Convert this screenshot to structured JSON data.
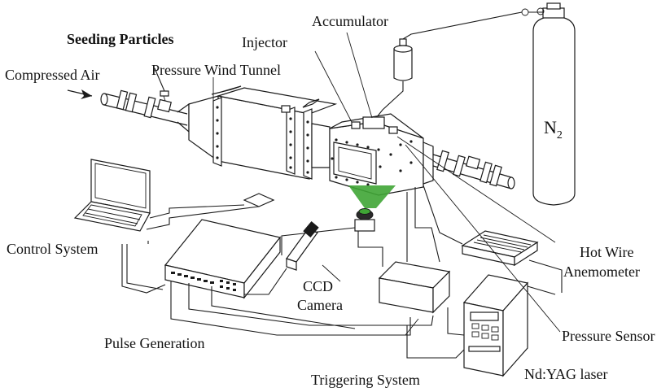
{
  "labels": {
    "seeding_particles": "Seeding Particles",
    "compressed_air": "Compressed Air",
    "pressure_wind_tunnel": "Pressure Wind Tunnel",
    "injector": "Injector",
    "accumulator": "Accumulator",
    "n2": "N",
    "n2_subscript": "2",
    "control_system": "Control System",
    "hot_wire": "Hot Wire",
    "anemometer": "Anemometer",
    "ccd": "CCD",
    "camera": "Camera",
    "pulse_generation": "Pulse Generation",
    "pressure_sensor": "Pressure Sensor",
    "triggering_system": "Triggering System",
    "nd_yag_laser": "Nd:YAG laser"
  },
  "colors": {
    "line": "#1a1a1a",
    "laser_beam": "#3fa535",
    "background": "#ffffff"
  }
}
